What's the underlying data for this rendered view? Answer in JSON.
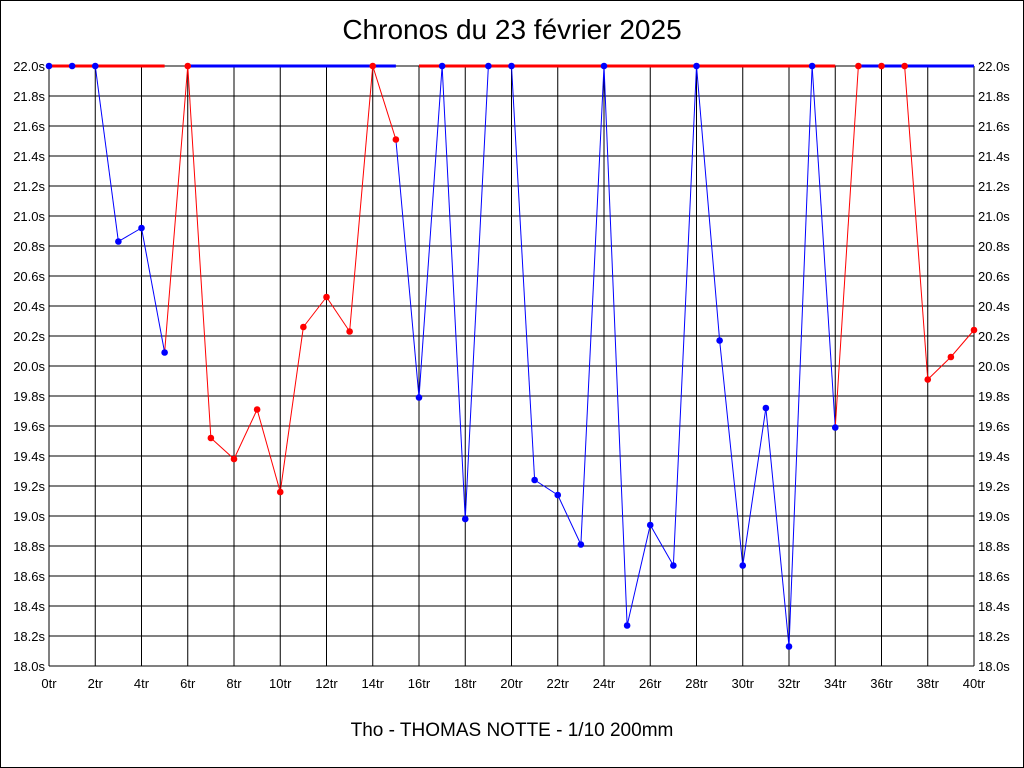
{
  "chart_data": {
    "type": "line",
    "title": "Chronos du 23 février 2025",
    "footer": "Tho - THOMAS NOTTE - 1/10 200mm",
    "xlabel": "",
    "ylabel": "",
    "xlim": [
      0,
      40
    ],
    "ylim": [
      18.0,
      22.0
    ],
    "grid": true,
    "legend": "none",
    "x_ticks": [
      0,
      2,
      4,
      6,
      8,
      10,
      12,
      14,
      16,
      18,
      20,
      22,
      24,
      26,
      28,
      30,
      32,
      34,
      36,
      38,
      40
    ],
    "x_tick_labels": [
      "0tr",
      "2tr",
      "4tr",
      "6tr",
      "8tr",
      "10tr",
      "12tr",
      "14tr",
      "16tr",
      "18tr",
      "20tr",
      "22tr",
      "24tr",
      "26tr",
      "28tr",
      "30tr",
      "32tr",
      "34tr",
      "36tr",
      "38tr",
      "40tr"
    ],
    "y_ticks": [
      18.0,
      18.2,
      18.4,
      18.6,
      18.8,
      19.0,
      19.2,
      19.4,
      19.6,
      19.8,
      20.0,
      20.2,
      20.4,
      20.6,
      20.8,
      21.0,
      21.2,
      21.4,
      21.6,
      21.8,
      22.0
    ],
    "y_tick_labels": [
      "18.0s",
      "18.2s",
      "18.4s",
      "18.6s",
      "18.8s",
      "19.0s",
      "19.2s",
      "19.4s",
      "19.6s",
      "19.8s",
      "20.0s",
      "20.2s",
      "20.4s",
      "20.6s",
      "20.8s",
      "21.0s",
      "21.2s",
      "21.4s",
      "21.6s",
      "21.8s",
      "22.0s"
    ],
    "overflow_value": 22.0,
    "points": [
      {
        "x": 0,
        "y": 22.0,
        "color": "#0000ff"
      },
      {
        "x": 1,
        "y": 22.0,
        "color": "#0000ff"
      },
      {
        "x": 2,
        "y": 22.0,
        "color": "#0000ff"
      },
      {
        "x": 3,
        "y": 20.83,
        "color": "#0000ff"
      },
      {
        "x": 4,
        "y": 20.92,
        "color": "#0000ff"
      },
      {
        "x": 5,
        "y": 20.09,
        "color": "#0000ff"
      },
      {
        "x": 6,
        "y": 22.0,
        "color": "#ff0000"
      },
      {
        "x": 7,
        "y": 19.52,
        "color": "#ff0000"
      },
      {
        "x": 8,
        "y": 19.38,
        "color": "#ff0000"
      },
      {
        "x": 9,
        "y": 19.71,
        "color": "#ff0000"
      },
      {
        "x": 10,
        "y": 19.16,
        "color": "#ff0000"
      },
      {
        "x": 11,
        "y": 20.26,
        "color": "#ff0000"
      },
      {
        "x": 12,
        "y": 20.46,
        "color": "#ff0000"
      },
      {
        "x": 13,
        "y": 20.23,
        "color": "#ff0000"
      },
      {
        "x": 14,
        "y": 22.0,
        "color": "#ff0000"
      },
      {
        "x": 15,
        "y": 21.51,
        "color": "#ff0000"
      },
      {
        "x": 16,
        "y": 19.79,
        "color": "#0000ff"
      },
      {
        "x": 17,
        "y": 22.0,
        "color": "#0000ff"
      },
      {
        "x": 18,
        "y": 18.98,
        "color": "#0000ff"
      },
      {
        "x": 19,
        "y": 22.0,
        "color": "#0000ff"
      },
      {
        "x": 20,
        "y": 22.0,
        "color": "#0000ff"
      },
      {
        "x": 21,
        "y": 19.24,
        "color": "#0000ff"
      },
      {
        "x": 22,
        "y": 19.14,
        "color": "#0000ff"
      },
      {
        "x": 23,
        "y": 18.81,
        "color": "#0000ff"
      },
      {
        "x": 24,
        "y": 22.0,
        "color": "#0000ff"
      },
      {
        "x": 25,
        "y": 18.27,
        "color": "#0000ff"
      },
      {
        "x": 26,
        "y": 18.94,
        "color": "#0000ff"
      },
      {
        "x": 27,
        "y": 18.67,
        "color": "#0000ff"
      },
      {
        "x": 28,
        "y": 22.0,
        "color": "#0000ff"
      },
      {
        "x": 29,
        "y": 20.17,
        "color": "#0000ff"
      },
      {
        "x": 30,
        "y": 18.67,
        "color": "#0000ff"
      },
      {
        "x": 31,
        "y": 19.72,
        "color": "#0000ff"
      },
      {
        "x": 32,
        "y": 18.13,
        "color": "#0000ff"
      },
      {
        "x": 33,
        "y": 22.0,
        "color": "#0000ff"
      },
      {
        "x": 34,
        "y": 19.59,
        "color": "#0000ff"
      },
      {
        "x": 35,
        "y": 22.0,
        "color": "#ff0000"
      },
      {
        "x": 36,
        "y": 22.0,
        "color": "#ff0000"
      },
      {
        "x": 37,
        "y": 22.0,
        "color": "#ff0000"
      },
      {
        "x": 38,
        "y": 19.91,
        "color": "#ff0000"
      },
      {
        "x": 39,
        "y": 20.06,
        "color": "#ff0000"
      },
      {
        "x": 40,
        "y": 20.24,
        "color": "#ff0000"
      }
    ],
    "top_segments": [
      {
        "x0": 0,
        "x1": 5,
        "color": "#ff0000"
      },
      {
        "x0": 6,
        "x1": 15,
        "color": "#0000ff"
      },
      {
        "x0": 16,
        "x1": 34,
        "color": "#ff0000"
      },
      {
        "x0": 35,
        "x1": 40,
        "color": "#0000ff"
      }
    ]
  }
}
